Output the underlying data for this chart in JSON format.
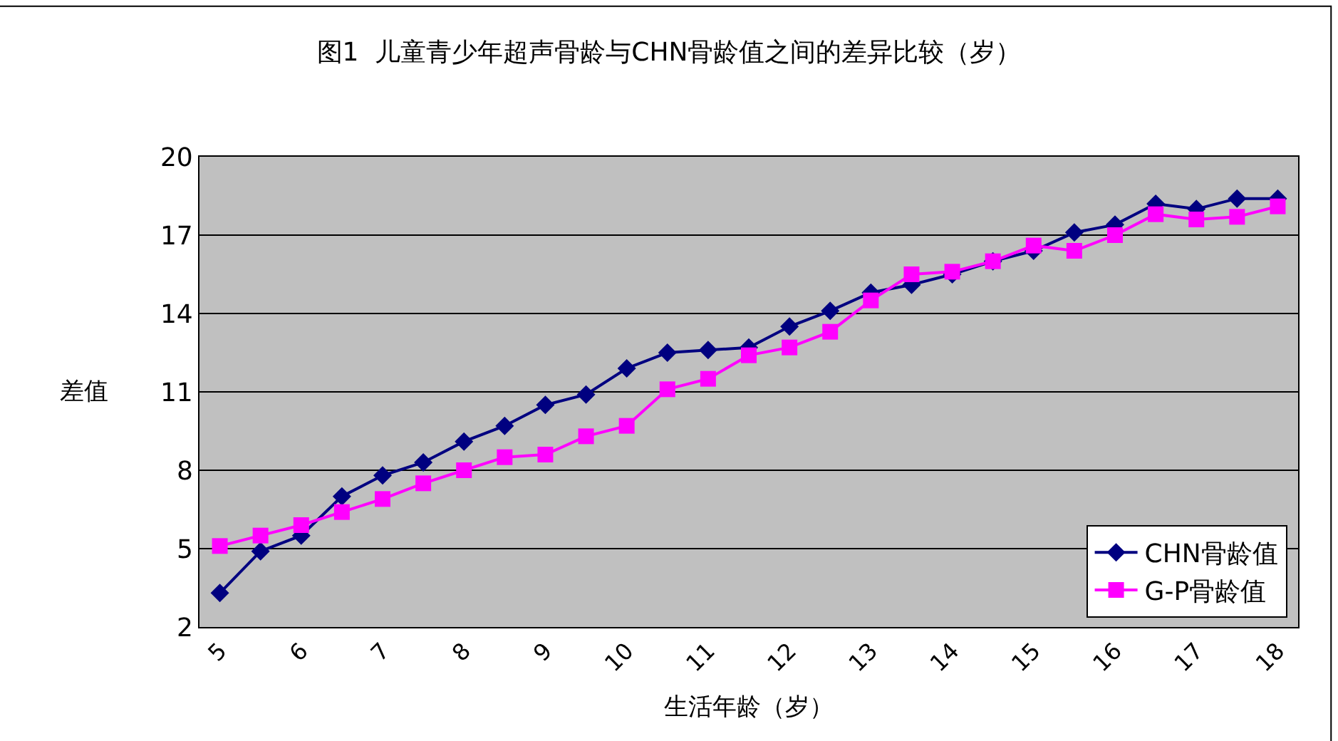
{
  "chart_data": {
    "type": "line",
    "title": "图1  儿童青少年超声骨龄与CHN骨龄值之间的差异比较（岁）",
    "xlabel": "生活年龄（岁）",
    "ylabel": "差值",
    "categories": [
      "5",
      null,
      "6",
      null,
      "7",
      null,
      "8",
      null,
      "9",
      null,
      "10",
      null,
      "11",
      null,
      "12",
      null,
      "13",
      null,
      "14",
      null,
      "15",
      null,
      "16",
      null,
      "17",
      null,
      "18"
    ],
    "series": [
      {
        "name": "CHN骨龄值",
        "color": "#000080",
        "marker": "diamond",
        "values": [
          3.3,
          4.9,
          5.5,
          7.0,
          7.8,
          8.3,
          9.1,
          9.7,
          10.5,
          10.9,
          11.9,
          12.5,
          12.6,
          12.7,
          13.5,
          14.1,
          14.8,
          15.1,
          15.5,
          16.0,
          16.4,
          17.1,
          17.4,
          18.2,
          18.0,
          18.4,
          18.4
        ]
      },
      {
        "name": "G-P骨龄值",
        "color": "#ff00ff",
        "marker": "square",
        "values": [
          5.1,
          5.5,
          5.9,
          6.4,
          6.9,
          7.5,
          8.0,
          8.5,
          8.6,
          9.3,
          9.7,
          11.1,
          11.5,
          12.4,
          12.7,
          13.3,
          14.5,
          15.5,
          15.6,
          16.0,
          16.6,
          16.4,
          17.0,
          17.8,
          17.6,
          17.7,
          18.1
        ]
      }
    ],
    "ylim": [
      2,
      20
    ],
    "yticks": [
      2,
      5,
      8,
      11,
      14,
      17,
      20
    ],
    "grid": "y",
    "legend": "bottom right",
    "line_style": "solid"
  }
}
